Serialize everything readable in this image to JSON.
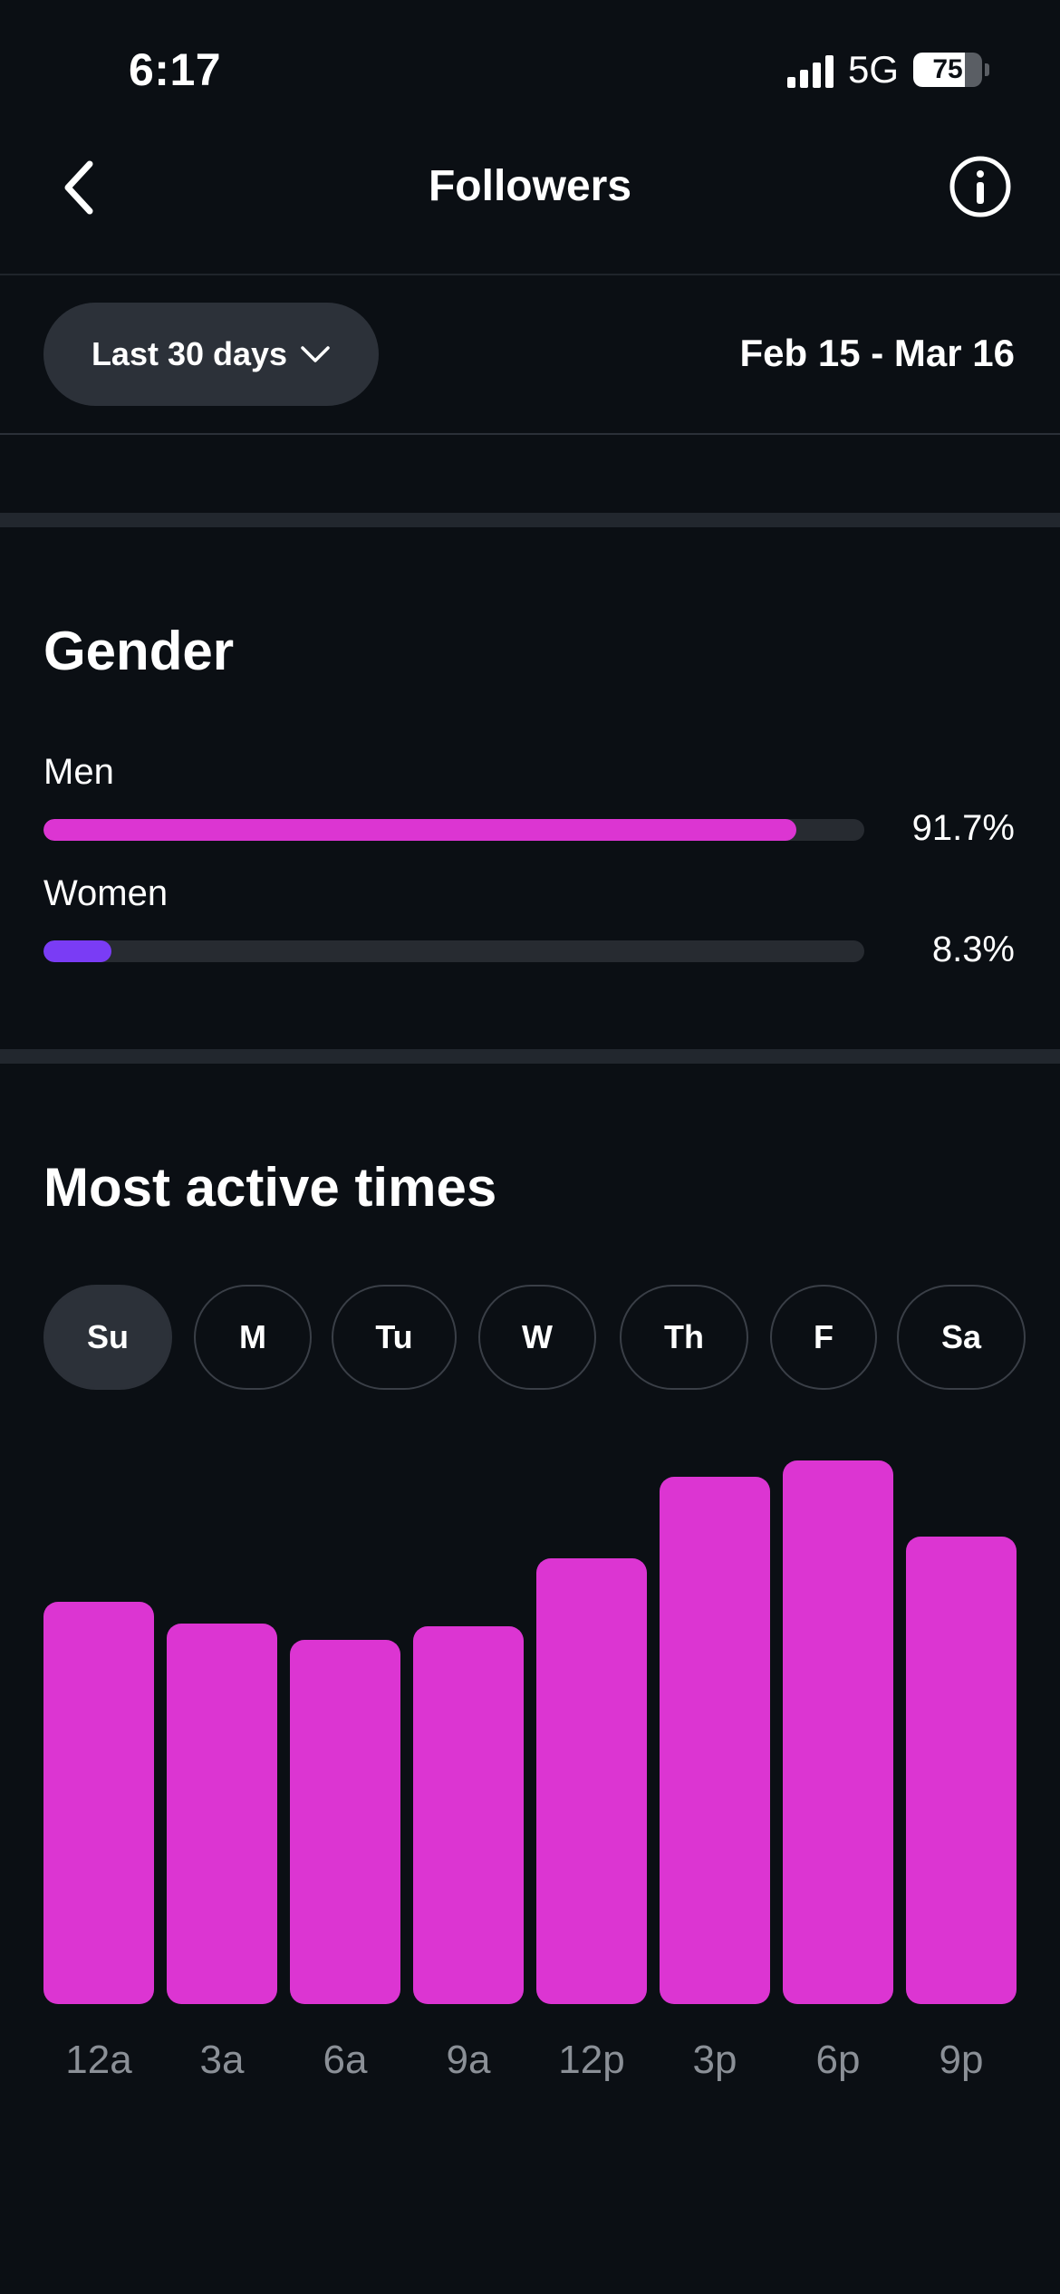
{
  "status_bar": {
    "time": "6:17",
    "network": "5G",
    "battery_level": "75",
    "battery_fraction": 0.75
  },
  "nav": {
    "title": "Followers",
    "back_icon": "chevron-left-icon",
    "info_icon": "info-circle-icon"
  },
  "filter": {
    "range_label": "Last 30 days",
    "dropdown_icon": "chevron-down-icon",
    "date_range": "Feb 15 - Mar 16"
  },
  "gender": {
    "title": "Gender",
    "items": [
      {
        "label": "Men",
        "value": "91.7%",
        "fraction": 0.917,
        "color": "#dc35d2"
      },
      {
        "label": "Women",
        "value": "8.3%",
        "fraction": 0.083,
        "color": "#7a3cf5"
      }
    ]
  },
  "active_times": {
    "title": "Most active times",
    "days": [
      "Su",
      "M",
      "Tu",
      "W",
      "Th",
      "F",
      "Sa"
    ],
    "selected_day": "Su"
  },
  "chart_data": {
    "type": "bar",
    "categories": [
      "12a",
      "3a",
      "6a",
      "9a",
      "12p",
      "3p",
      "6p",
      "9p"
    ],
    "values": [
      74,
      70,
      67,
      69.5,
      82,
      97,
      100,
      86
    ],
    "ylim": [
      0,
      100
    ],
    "bar_color": "#dc35d2",
    "grid": false,
    "legend": "none"
  }
}
